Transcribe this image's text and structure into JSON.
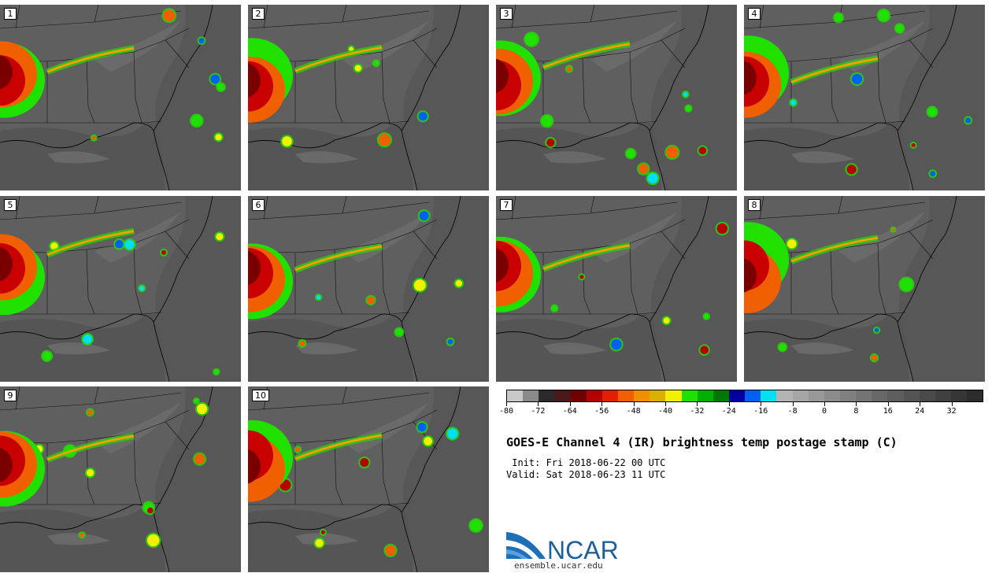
{
  "title": "GOES-E Channel 4 (IR) brightness temp postage stamp (C)",
  "init_line": " Init: Fri 2018-06-22 00 UTC",
  "valid_line": "Valid: Sat 2018-06-23 11 UTC",
  "site": "ensemble.ucar.edu",
  "logo_text": "NCAR",
  "panels": [
    {
      "label": "1"
    },
    {
      "label": "2"
    },
    {
      "label": "3"
    },
    {
      "label": "4"
    },
    {
      "label": "5"
    },
    {
      "label": "6"
    },
    {
      "label": "7"
    },
    {
      "label": "8"
    },
    {
      "label": "9"
    },
    {
      "label": "10"
    }
  ],
  "colorbar": {
    "colors": [
      "#c8c8c8",
      "#8a8a8a",
      "#2a2a2a",
      "#4a1a1a",
      "#6e0000",
      "#b40000",
      "#e02000",
      "#f06000",
      "#f09000",
      "#d8b000",
      "#f0f000",
      "#20e000",
      "#00b000",
      "#007800",
      "#0000a0",
      "#0060f0",
      "#00e0f0",
      "#b4b4b4",
      "#a6a6a6",
      "#989898",
      "#8c8c8c",
      "#808080",
      "#747474",
      "#686868",
      "#5e5e5e",
      "#545454",
      "#4a4a4a",
      "#404040",
      "#363636",
      "#2c2c2c"
    ],
    "tick_labels": [
      "-80",
      "-72",
      "-64",
      "-56",
      "-48",
      "-40",
      "-32",
      "-24",
      "-16",
      "-8",
      "0",
      "8",
      "16",
      "24",
      "32"
    ]
  }
}
